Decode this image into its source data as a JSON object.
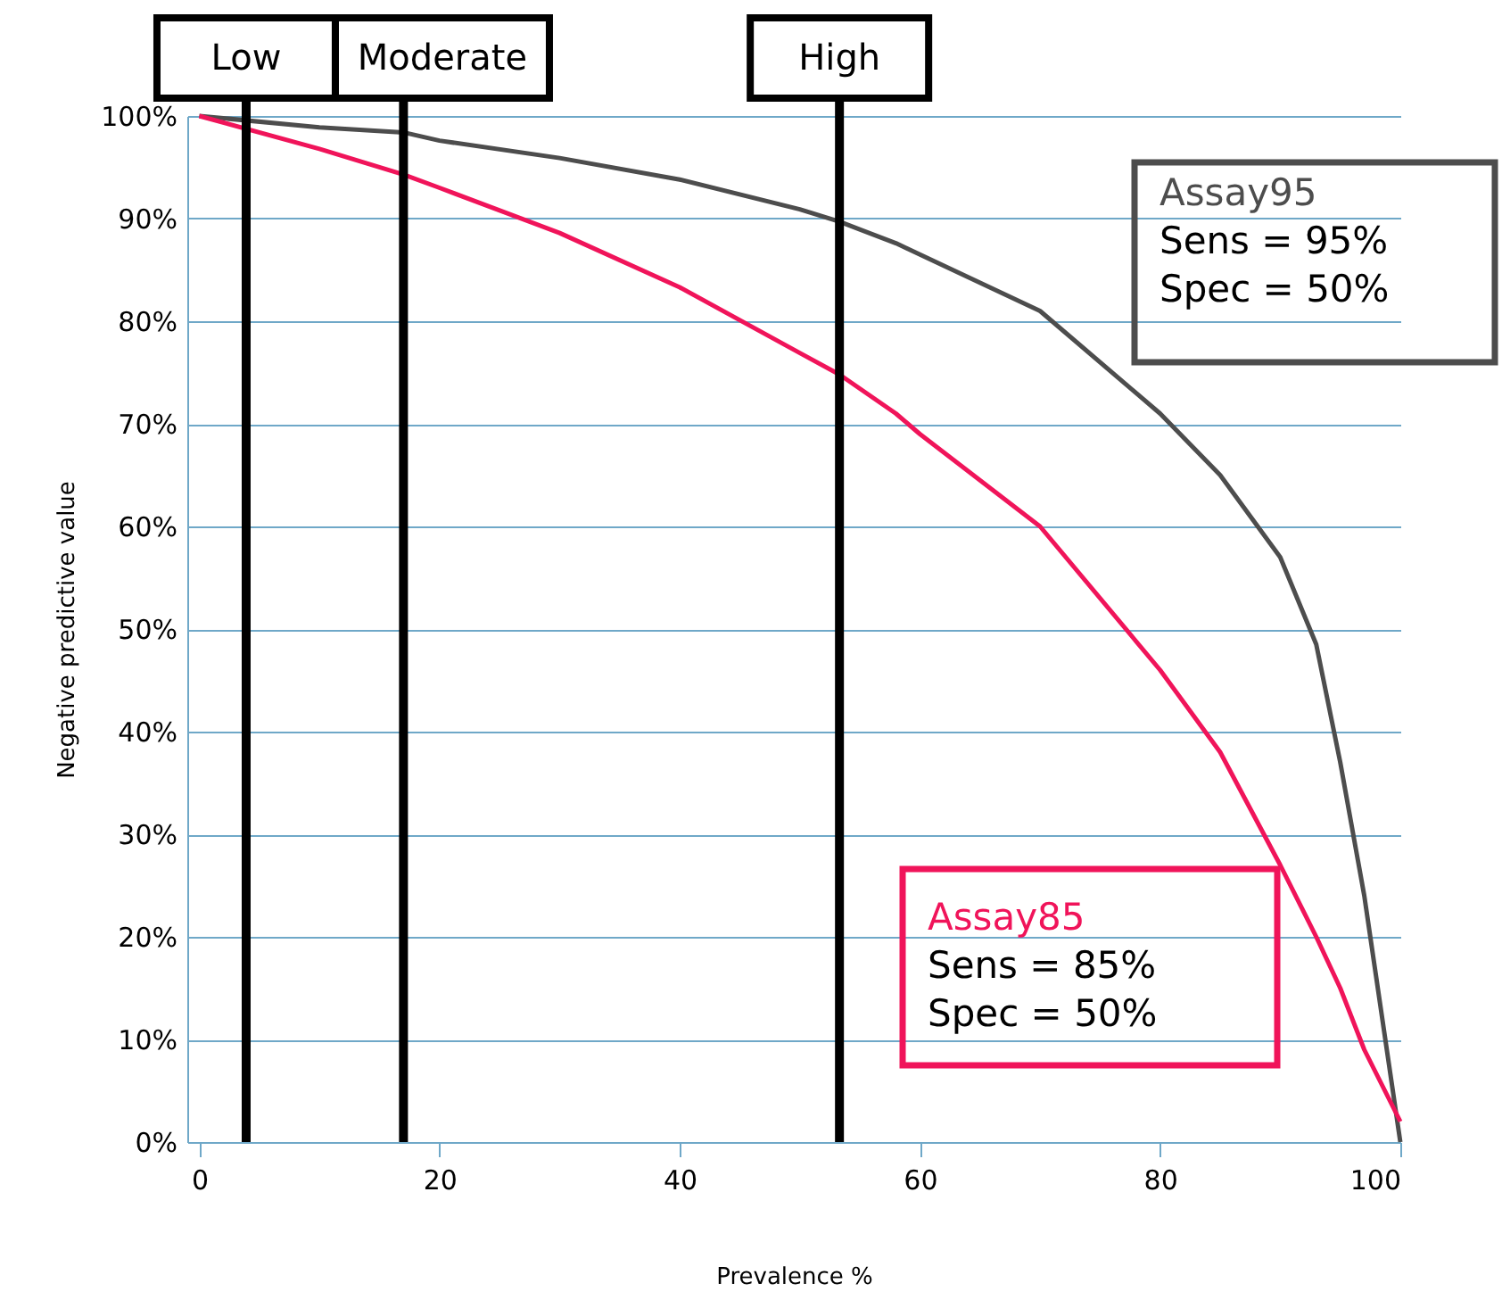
{
  "chart_data": {
    "type": "line",
    "xlabel": "Prevalence %",
    "ylabel": "Negative predictive value",
    "x": [
      0,
      10,
      17,
      20,
      30,
      40,
      50,
      53.3,
      58,
      60,
      70,
      80,
      85,
      90,
      93,
      95,
      97,
      100
    ],
    "series": [
      {
        "name": "Assay95",
        "color": "#4d4d4d",
        "values": [
          100,
          98.9,
          98.4,
          97.6,
          95.9,
          93.8,
          90.9,
          89.7,
          87.6,
          86.5,
          81,
          71,
          65,
          57,
          48.5,
          37,
          24,
          0
        ]
      },
      {
        "name": "Assay85",
        "color": "#f0145a",
        "values": [
          100,
          96.8,
          94.3,
          93,
          88.6,
          83.3,
          76.9,
          74.8,
          71,
          69,
          60,
          46,
          38,
          27,
          20,
          15,
          9,
          2
        ]
      }
    ],
    "xlim": [
      -1,
      100
    ],
    "xticks": [
      0,
      20,
      40,
      60,
      80,
      100
    ],
    "ylim": [
      0,
      100
    ],
    "yticks": [
      {
        "value": 0,
        "label": "0%"
      },
      {
        "value": 10,
        "label": "10%"
      },
      {
        "value": 20,
        "label": "20%"
      },
      {
        "value": 30,
        "label": "30%"
      },
      {
        "value": 40,
        "label": "40%"
      },
      {
        "value": 50,
        "label": "50%"
      },
      {
        "value": 60,
        "label": "60%"
      },
      {
        "value": 70,
        "label": "70%"
      },
      {
        "value": 80,
        "label": "80%"
      },
      {
        "value": 90,
        "label": "90%"
      },
      {
        "value": 100,
        "label": "100%"
      }
    ],
    "grid": "y",
    "ref_lines": [
      {
        "axis": "x",
        "value": 3.9,
        "label": "Low",
        "color": "#000000"
      },
      {
        "axis": "x",
        "value": 17,
        "label": "Moderate",
        "color": "#000000"
      },
      {
        "axis": "x",
        "value": 53.3,
        "label": "High",
        "color": "#000000"
      }
    ],
    "annotations": [
      "Sens = 95%",
      "Spec = 50%",
      "Sens = 85%",
      "Spec = 50%"
    ]
  }
}
